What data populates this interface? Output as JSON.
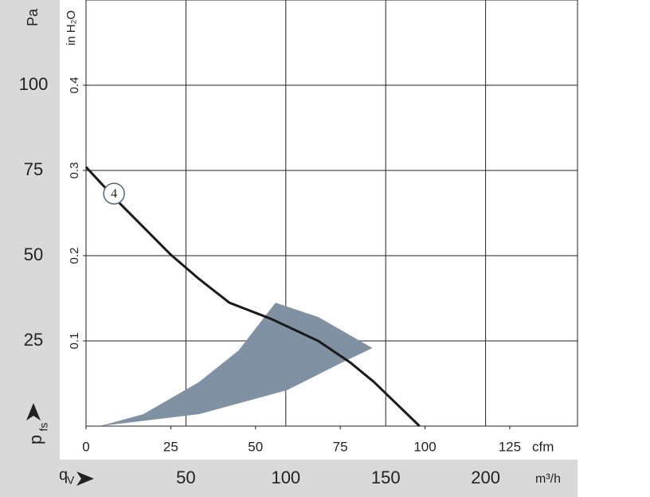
{
  "chart_data": {
    "type": "line",
    "y_unit": "Pa",
    "y2_unit": "in H₂O",
    "x_unit": "cfm",
    "x2_unit": "m³/h",
    "y_label": "p",
    "y_label_sub": "fs",
    "x_label": "q",
    "x_label_sub": "V",
    "xlim": [
      0,
      145
    ],
    "xticks": [
      0,
      25,
      50,
      75,
      100,
      125
    ],
    "x2lim": [
      0,
      246
    ],
    "x2ticks": [
      50,
      100,
      150,
      200
    ],
    "ylim": [
      0,
      125
    ],
    "yticks": [
      25,
      50,
      75,
      100
    ],
    "y2lim": [
      0,
      0.5
    ],
    "y2ticks": [
      0.1,
      0.2,
      0.3,
      0.4
    ],
    "grid": true,
    "series": [
      {
        "name": "4",
        "color": "#1a1a1a",
        "x": [
          0,
          9.9,
          25.1,
          33.3,
          42.3,
          54.5,
          68.5,
          77.9,
          85,
          98.4
        ],
        "values": [
          76,
          65.4,
          50.2,
          43.2,
          36.2,
          31.5,
          25,
          18.7,
          12.9,
          0
        ]
      }
    ],
    "region": {
      "color": "#7f91a3",
      "x": [
        4,
        16.9,
        33.3,
        45,
        55.9,
        68.5,
        84.5,
        75.6,
        59.2,
        33.3
      ],
      "values": [
        0,
        3.5,
        12.9,
        22.2,
        36.2,
        32,
        22.9,
        18.7,
        10.5,
        3.5
      ]
    }
  }
}
